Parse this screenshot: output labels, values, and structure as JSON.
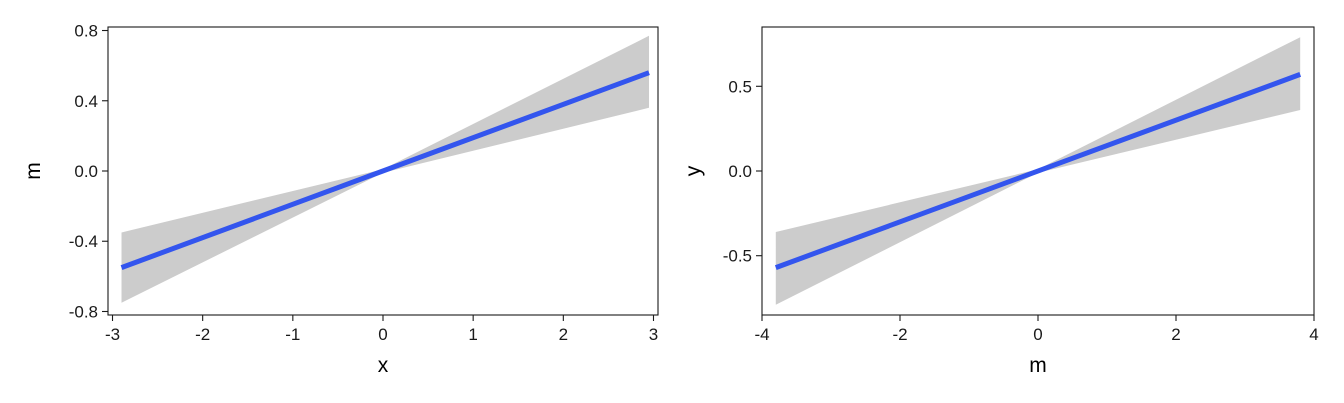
{
  "chart_data": [
    {
      "type": "line",
      "title": "",
      "xlabel": "x",
      "ylabel": "m",
      "xlim": [
        -3.05,
        3.05
      ],
      "ylim": [
        -0.82,
        0.82
      ],
      "xticks": [
        -3,
        -2,
        -1,
        0,
        1,
        2,
        3
      ],
      "xtick_labels": [
        "-3",
        "-2",
        "-1",
        "0",
        "1",
        "2",
        "3"
      ],
      "yticks": [
        -0.8,
        -0.4,
        0.0,
        0.4,
        0.8
      ],
      "ytick_labels": [
        "-0.8",
        "-0.4",
        "0.0",
        "0.4",
        "0.8"
      ],
      "grid": false,
      "series": [
        {
          "x": [
            -2.9,
            2.95
          ],
          "y": [
            -0.55,
            0.56
          ],
          "color": "#3355ee",
          "band": {
            "x": [
              -2.9,
              0,
              2.95
            ],
            "lower": [
              -0.75,
              -0.01,
              0.36
            ],
            "upper": [
              -0.35,
              0.01,
              0.77
            ],
            "color": "#cccccc"
          }
        }
      ]
    },
    {
      "type": "line",
      "title": "",
      "xlabel": "m",
      "ylabel": "y",
      "xlim": [
        -4.0,
        4.0
      ],
      "ylim": [
        -0.85,
        0.85
      ],
      "xticks": [
        -4,
        -2,
        0,
        2,
        4
      ],
      "xtick_labels": [
        "-4",
        "-2",
        "0",
        "2",
        "4"
      ],
      "yticks": [
        -0.5,
        0.0,
        0.5
      ],
      "ytick_labels": [
        "-0.5",
        "0.0",
        "0.5"
      ],
      "grid": false,
      "series": [
        {
          "x": [
            -3.8,
            3.8
          ],
          "y": [
            -0.57,
            0.57
          ],
          "color": "#3355ee",
          "band": {
            "x": [
              -3.8,
              0,
              3.8
            ],
            "lower": [
              -0.79,
              -0.01,
              0.36
            ],
            "upper": [
              -0.36,
              0.01,
              0.79
            ],
            "color": "#cccccc"
          }
        }
      ]
    }
  ]
}
